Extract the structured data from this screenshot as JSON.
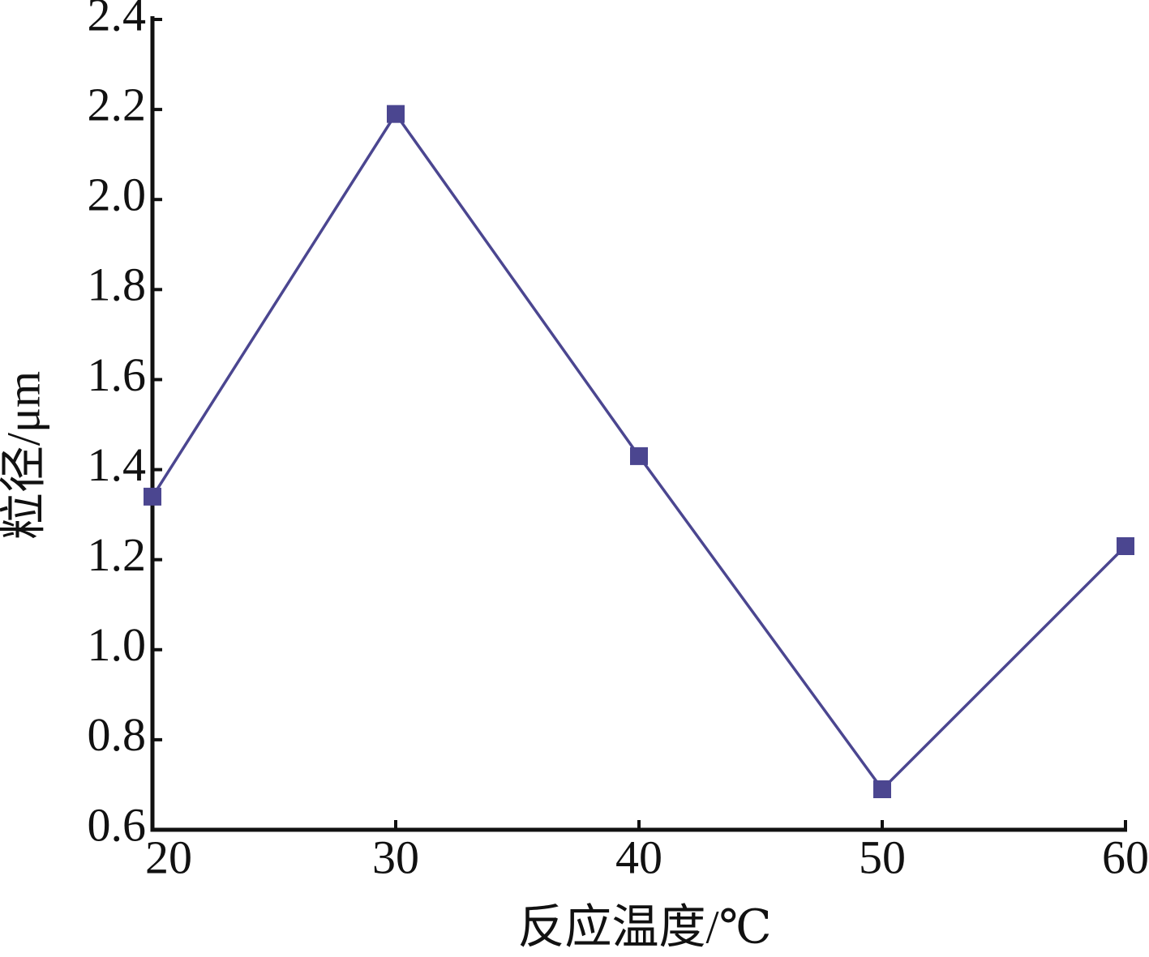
{
  "chart_data": {
    "type": "line",
    "x_label": "反应温度/℃",
    "y_label": "粒径/μm",
    "x": [
      20,
      30,
      40,
      50,
      60
    ],
    "series": [
      {
        "name": "粒径",
        "color": "#4b4690",
        "values": [
          1.34,
          2.19,
          1.43,
          0.69,
          1.23
        ]
      }
    ],
    "xlim": [
      20,
      60
    ],
    "xticks": [
      20,
      30,
      40,
      50,
      60
    ],
    "ylim": [
      0.6,
      2.4
    ],
    "yticks": [
      0.6,
      0.8,
      {
        "value": 1,
        "label": "1.0"
      },
      1.2,
      1.4,
      1.6,
      1.8,
      {
        "value": 2,
        "label": "2.0"
      },
      2.2,
      2.4
    ],
    "marker": "square",
    "grid": false
  }
}
